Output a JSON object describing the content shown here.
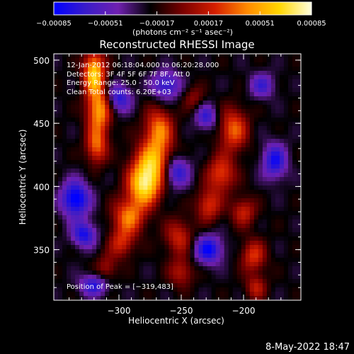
{
  "chart_data": {
    "type": "heatmap",
    "title": "Reconstructed RHESSI Image",
    "xlabel": "Heliocentric X (arcsec)",
    "ylabel": "Heliocentric Y (arcsec)",
    "xlim": [
      -348,
      -243
    ],
    "ylim": [
      310,
      505
    ],
    "x_ticks": [
      -300,
      -250,
      -200
    ],
    "x_tick_labels": [
      "−300",
      "−250",
      "−200"
    ],
    "y_ticks": [
      350,
      400,
      450,
      500
    ],
    "y_tick_labels": [
      "350",
      "400",
      "450",
      "500"
    ],
    "colorbar": {
      "label": "(photons cm⁻² s⁻¹ asec⁻²)",
      "min": -0.00085,
      "max": 0.00085,
      "ticks": [
        -0.00085,
        -0.00051,
        -0.00017,
        0.00017,
        0.00051,
        0.00085
      ],
      "tick_labels": [
        "−0.00085",
        "−0.00051",
        "−0.00017",
        "0.00017",
        "0.00051",
        "0.00085"
      ],
      "colors": [
        "#0000ff",
        "#3a1cc8",
        "#7020b0",
        "#000000",
        "#7a0000",
        "#d41e00",
        "#ff8a00",
        "#ffd600",
        "#ffffe0"
      ]
    },
    "annotations": [
      "12-Jan-2012 06:18:04.000 to 06:20:28.000",
      "Detectors: 3F 4F 5F 6F 7F 8F, Att 0",
      "Energy Range: 25.0 - 50.0 keV",
      "Clean   Total counts: 6.20E+03"
    ],
    "peak_label": "Position of Peak = [−319,483]",
    "features": [
      {
        "kind": "peak",
        "x": -320,
        "y": 490,
        "w": 6,
        "h": 12,
        "v": 0.00085
      },
      {
        "kind": "peak",
        "x": -316,
        "y": 460,
        "w": 7,
        "h": 12,
        "v": 0.0007
      },
      {
        "kind": "peak",
        "x": -318,
        "y": 432,
        "w": 6,
        "h": 10,
        "v": 0.00055
      },
      {
        "kind": "peak",
        "x": -268,
        "y": 445,
        "w": 8,
        "h": 12,
        "v": 0.0006
      },
      {
        "kind": "peak",
        "x": -272,
        "y": 418,
        "w": 11,
        "h": 12,
        "v": 0.00075
      },
      {
        "kind": "peak",
        "x": -280,
        "y": 400,
        "w": 9,
        "h": 11,
        "v": 0.0008
      },
      {
        "kind": "peak",
        "x": -292,
        "y": 376,
        "w": 9,
        "h": 10,
        "v": 0.0006
      },
      {
        "kind": "peak",
        "x": -298,
        "y": 355,
        "w": 7,
        "h": 8,
        "v": 0.0004
      },
      {
        "kind": "peak",
        "x": -310,
        "y": 335,
        "w": 6,
        "h": 8,
        "v": 0.0003
      },
      {
        "kind": "peak",
        "x": -252,
        "y": 360,
        "w": 8,
        "h": 10,
        "v": 0.0004
      },
      {
        "kind": "peak",
        "x": -250,
        "y": 332,
        "w": 7,
        "h": 8,
        "v": 0.00035
      },
      {
        "kind": "peak",
        "x": -208,
        "y": 445,
        "w": 8,
        "h": 12,
        "v": 0.00055
      },
      {
        "kind": "peak",
        "x": -218,
        "y": 410,
        "w": 8,
        "h": 10,
        "v": 0.0005
      },
      {
        "kind": "peak",
        "x": -228,
        "y": 385,
        "w": 7,
        "h": 9,
        "v": 0.00045
      },
      {
        "kind": "peak",
        "x": -200,
        "y": 380,
        "w": 7,
        "h": 8,
        "v": 0.0004
      },
      {
        "kind": "peak",
        "x": -192,
        "y": 345,
        "w": 7,
        "h": 9,
        "v": 0.00045
      },
      {
        "kind": "peak",
        "x": -190,
        "y": 320,
        "w": 6,
        "h": 7,
        "v": 0.00035
      },
      {
        "kind": "peak",
        "x": -240,
        "y": 470,
        "w": 6,
        "h": 7,
        "v": 0.00025
      },
      {
        "kind": "trough",
        "x": -335,
        "y": 390,
        "w": 8,
        "h": 10,
        "v": -0.0007
      },
      {
        "kind": "trough",
        "x": -328,
        "y": 362,
        "w": 7,
        "h": 7,
        "v": -0.00055
      },
      {
        "kind": "trough",
        "x": -255,
        "y": 412,
        "w": 8,
        "h": 9,
        "v": -0.0006
      },
      {
        "kind": "trough",
        "x": -262,
        "y": 480,
        "w": 8,
        "h": 8,
        "v": -0.0005
      },
      {
        "kind": "trough",
        "x": -300,
        "y": 470,
        "w": 7,
        "h": 8,
        "v": -0.0005
      },
      {
        "kind": "trough",
        "x": -228,
        "y": 350,
        "w": 8,
        "h": 8,
        "v": -0.0006
      },
      {
        "kind": "trough",
        "x": -175,
        "y": 420,
        "w": 7,
        "h": 10,
        "v": -0.00055
      },
      {
        "kind": "trough",
        "x": -230,
        "y": 455,
        "w": 6,
        "h": 7,
        "v": -0.00045
      },
      {
        "kind": "trough",
        "x": -320,
        "y": 322,
        "w": 8,
        "h": 6,
        "v": -0.0005
      },
      {
        "kind": "trough",
        "x": -185,
        "y": 480,
        "w": 7,
        "h": 7,
        "v": -0.0004
      }
    ]
  },
  "timestamp": "8-May-2022 18:47"
}
